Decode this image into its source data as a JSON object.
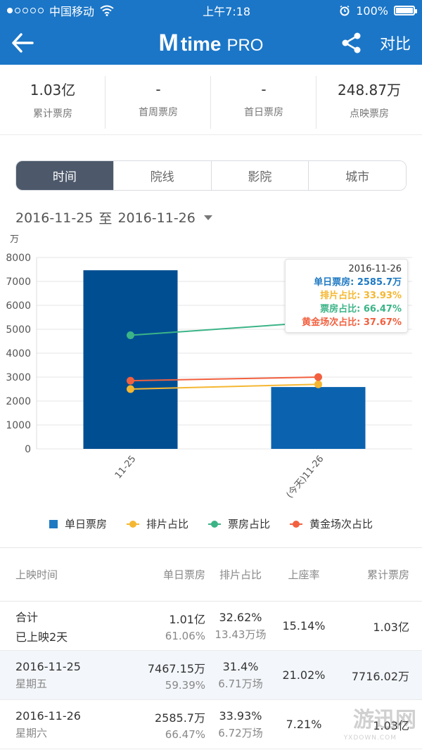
{
  "status": {
    "carrier": "中国移动",
    "time": "上午7:18",
    "battery": "100%"
  },
  "nav": {
    "brand_m": "M",
    "brand_time": "time",
    "brand_pro": "PRO",
    "compare_label": "对比"
  },
  "summary": [
    {
      "value": "1.03亿",
      "label": "累计票房"
    },
    {
      "value": "-",
      "label": "首周票房"
    },
    {
      "value": "-",
      "label": "首日票房"
    },
    {
      "value": "248.87万",
      "label": "点映票房"
    }
  ],
  "tabs": [
    "时间",
    "院线",
    "影院",
    "城市"
  ],
  "date_range": {
    "start": "2016-11-25",
    "sep": "至",
    "end": "2016-11-26"
  },
  "colors": {
    "bar_dark": "#004e92",
    "bar_light": "#0b63af",
    "paipian": "#f5b731",
    "piaofang": "#3bb487",
    "huangjin": "#f2603f",
    "header": "#1b76c7"
  },
  "chart_data": {
    "type": "bar",
    "unit": "万",
    "categories": [
      "11-25",
      "(今天)11-26"
    ],
    "ylim": [
      0,
      8000
    ],
    "yticks": [
      0,
      1000,
      2000,
      3000,
      4000,
      5000,
      6000,
      7000,
      8000
    ],
    "series": [
      {
        "name": "单日票房",
        "kind": "bar",
        "values": [
          7467.15,
          2585.7
        ]
      },
      {
        "name": "排片占比",
        "kind": "line",
        "values": [
          2500,
          2700
        ]
      },
      {
        "name": "票房占比",
        "kind": "line",
        "values": [
          4750,
          5300
        ]
      },
      {
        "name": "黄金场次占比",
        "kind": "line",
        "values": [
          2850,
          3000
        ]
      }
    ],
    "tooltip": {
      "date": "2016-11-26",
      "rows": [
        {
          "label": "单日票房:",
          "value": "2585.7万"
        },
        {
          "label": "排片占比:",
          "value": "33.93%"
        },
        {
          "label": "票房占比:",
          "value": "66.47%"
        },
        {
          "label": "黄金场次占比:",
          "value": "37.67%"
        }
      ]
    },
    "legend": [
      "单日票房",
      "排片占比",
      "票房占比",
      "黄金场次占比"
    ]
  },
  "table": {
    "headers": [
      "上映时间",
      "单日票房",
      "排片占比",
      "上座率",
      "累计票房"
    ],
    "rows": [
      {
        "t1": "合计",
        "t2": "已上映2天",
        "b1": "1.01亿",
        "b2": "61.06%",
        "p1": "32.62%",
        "p2": "13.43万场",
        "seat": "15.14%",
        "total": "1.03亿"
      },
      {
        "t1": "2016-11-25",
        "t2": "星期五",
        "b1": "7467.15万",
        "b2": "59.39%",
        "p1": "31.4%",
        "p2": "6.71万场",
        "seat": "21.02%",
        "total": "7716.02万"
      },
      {
        "t1": "2016-11-26",
        "t2": "星期六",
        "b1": "2585.7万",
        "b2": "66.47%",
        "p1": "33.93%",
        "p2": "6.72万场",
        "seat": "7.21%",
        "total": "1.03亿"
      }
    ]
  },
  "watermark": {
    "main": "游迅网",
    "sub": "YXDOWN.COM"
  }
}
